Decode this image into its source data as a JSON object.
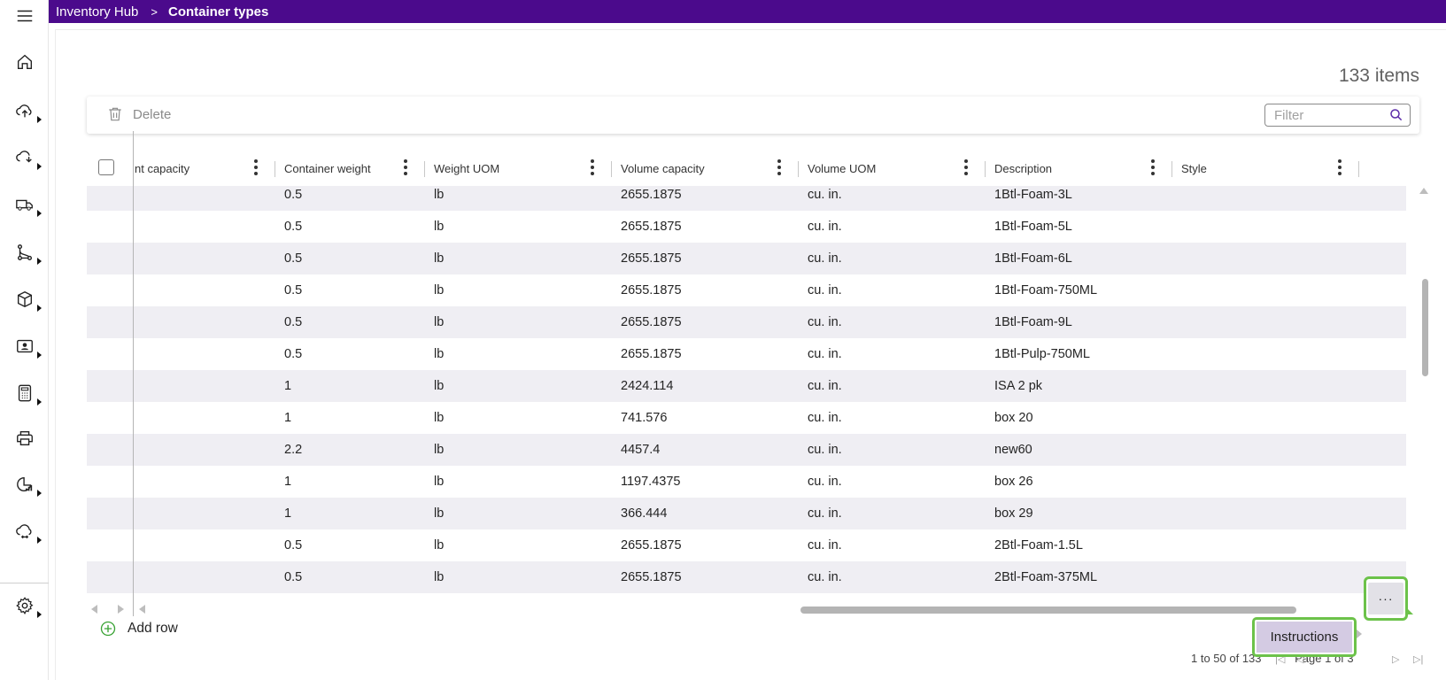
{
  "header": {
    "app_title": "Inventory Hub",
    "page_title": "Container types",
    "separator": ">"
  },
  "summary": {
    "items_count": "133 items"
  },
  "toolbar": {
    "delete_label": "Delete",
    "filter_placeholder": "Filter"
  },
  "columns": [
    {
      "label": "nt capacity"
    },
    {
      "label": "Container weight"
    },
    {
      "label": "Weight UOM"
    },
    {
      "label": "Volume capacity"
    },
    {
      "label": "Volume UOM"
    },
    {
      "label": "Description"
    },
    {
      "label": "Style"
    }
  ],
  "rows": [
    {
      "weight": "0.5",
      "weight_uom": "lb",
      "volume": "2655.1875",
      "volume_uom": "cu. in.",
      "description": "1Btl-Foam-3L",
      "style": ""
    },
    {
      "weight": "0.5",
      "weight_uom": "lb",
      "volume": "2655.1875",
      "volume_uom": "cu. in.",
      "description": "1Btl-Foam-5L",
      "style": ""
    },
    {
      "weight": "0.5",
      "weight_uom": "lb",
      "volume": "2655.1875",
      "volume_uom": "cu. in.",
      "description": "1Btl-Foam-6L",
      "style": ""
    },
    {
      "weight": "0.5",
      "weight_uom": "lb",
      "volume": "2655.1875",
      "volume_uom": "cu. in.",
      "description": "1Btl-Foam-750ML",
      "style": ""
    },
    {
      "weight": "0.5",
      "weight_uom": "lb",
      "volume": "2655.1875",
      "volume_uom": "cu. in.",
      "description": "1Btl-Foam-9L",
      "style": ""
    },
    {
      "weight": "0.5",
      "weight_uom": "lb",
      "volume": "2655.1875",
      "volume_uom": "cu. in.",
      "description": "1Btl-Pulp-750ML",
      "style": ""
    },
    {
      "weight": "1",
      "weight_uom": "lb",
      "volume": "2424.114",
      "volume_uom": "cu. in.",
      "description": "ISA 2 pk",
      "style": ""
    },
    {
      "weight": "1",
      "weight_uom": "lb",
      "volume": "741.576",
      "volume_uom": "cu. in.",
      "description": "box 20",
      "style": ""
    },
    {
      "weight": "2.2",
      "weight_uom": "lb",
      "volume": "4457.4",
      "volume_uom": "cu. in.",
      "description": "new60",
      "style": ""
    },
    {
      "weight": "1",
      "weight_uom": "lb",
      "volume": "1197.4375",
      "volume_uom": "cu. in.",
      "description": "box 26",
      "style": ""
    },
    {
      "weight": "1",
      "weight_uom": "lb",
      "volume": "366.444",
      "volume_uom": "cu. in.",
      "description": "box 29",
      "style": ""
    },
    {
      "weight": "0.5",
      "weight_uom": "lb",
      "volume": "2655.1875",
      "volume_uom": "cu. in.",
      "description": "2Btl-Foam-1.5L",
      "style": ""
    },
    {
      "weight": "0.5",
      "weight_uom": "lb",
      "volume": "2655.1875",
      "volume_uom": "cu. in.",
      "description": "2Btl-Foam-375ML",
      "style": ""
    }
  ],
  "footer": {
    "add_row_label": "Add row",
    "range_text": "1 to 50 of 133",
    "page_text": "Page 1 of 3"
  },
  "actions": {
    "more_label": "···",
    "instructions_label": "Instructions"
  },
  "sidebar": {
    "items": [
      {
        "icon": "home-icon"
      },
      {
        "icon": "upload-icon"
      },
      {
        "icon": "inbound-icon"
      },
      {
        "icon": "truck-icon"
      },
      {
        "icon": "route-icon"
      },
      {
        "icon": "box-icon"
      },
      {
        "icon": "contact-card-icon"
      },
      {
        "icon": "calculator-icon"
      },
      {
        "icon": "printer-icon"
      },
      {
        "icon": "analytics-icon"
      },
      {
        "icon": "cloud-sync-icon"
      },
      {
        "icon": "settings-icon"
      }
    ]
  },
  "colors": {
    "header_bg": "#4b0a8c",
    "highlight": "#6cc24a",
    "row_alt": "#efeef3",
    "menu_bg": "#d4cbe3"
  }
}
